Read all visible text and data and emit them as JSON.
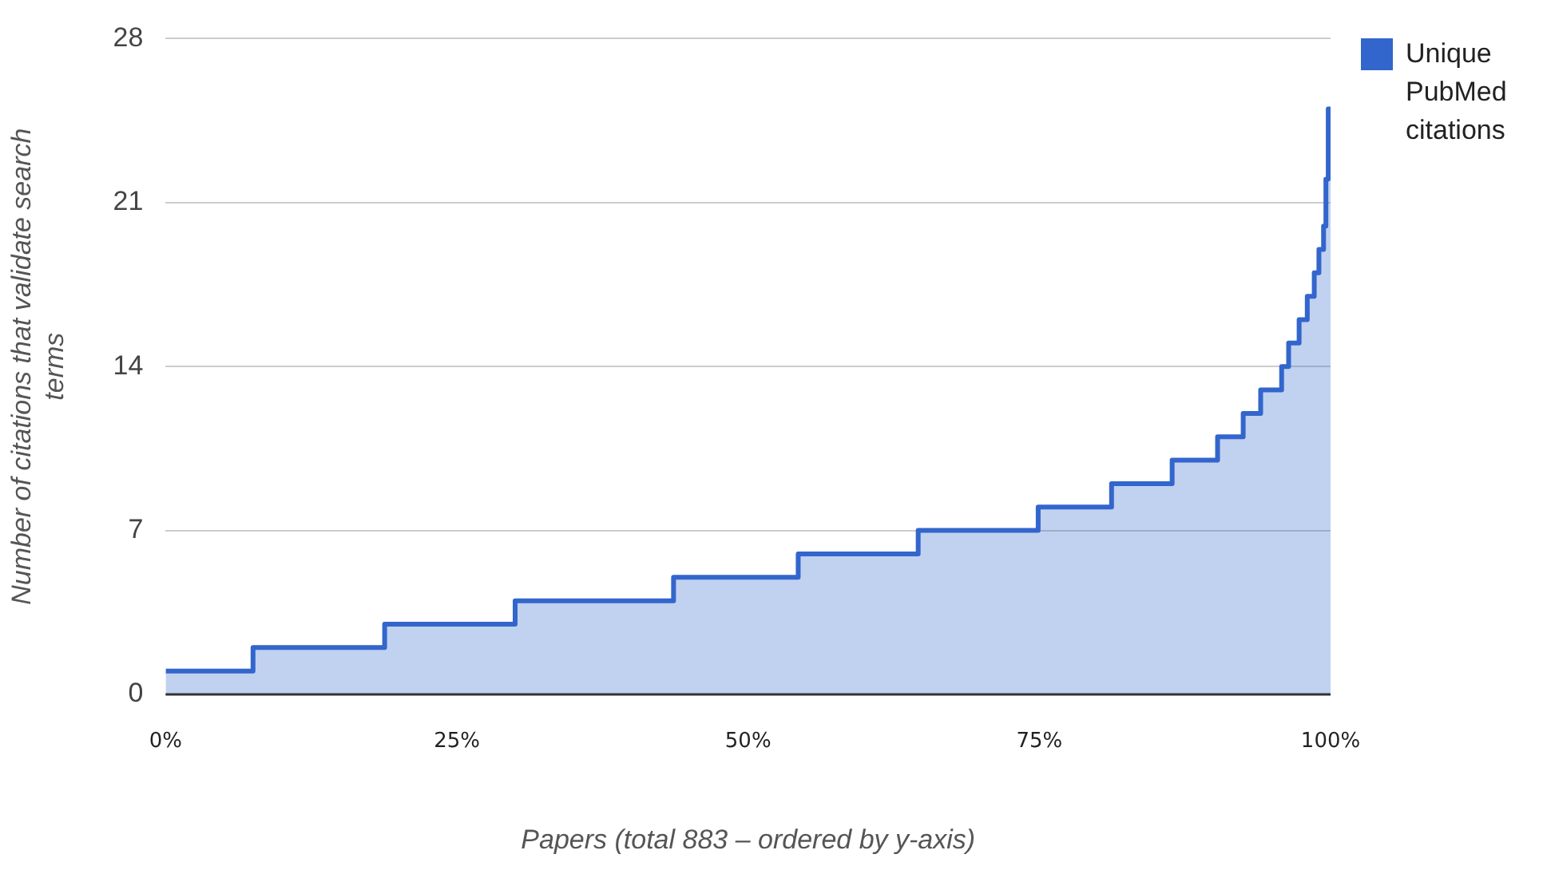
{
  "chart_data": {
    "type": "area",
    "xlabel": "Papers (total 883 – ordered by y-axis)",
    "ylabel": "Number of citations that validate search terms",
    "series": [
      {
        "name": "Unique PubMed citations",
        "color": "#3366cc",
        "x": [
          0,
          7.5,
          7.5,
          18.8,
          18.8,
          30.0,
          30.0,
          43.6,
          43.6,
          54.3,
          54.3,
          64.6,
          64.6,
          74.9,
          74.9,
          81.2,
          81.2,
          86.4,
          86.4,
          90.3,
          90.3,
          92.5,
          92.5,
          94.0,
          94.0,
          95.8,
          95.8,
          96.4,
          96.4,
          97.3,
          97.3,
          98.0,
          98.0,
          98.6,
          98.6,
          99.0,
          99.0,
          99.4,
          99.4,
          99.6,
          99.6,
          99.8,
          99.8,
          100
        ],
        "values": [
          1,
          1,
          2,
          2,
          3,
          3,
          4,
          4,
          5,
          5,
          6,
          6,
          7,
          7,
          8,
          8,
          9,
          9,
          10,
          10,
          11,
          11,
          12,
          12,
          13,
          13,
          14,
          14,
          15,
          15,
          16,
          16,
          17,
          17,
          18,
          18,
          19,
          19,
          20,
          20,
          22,
          22,
          25,
          25
        ]
      }
    ],
    "xlim": [
      0,
      100
    ],
    "xticks": [
      {
        "value": 0,
        "label": "0%"
      },
      {
        "value": 25,
        "label": "25%"
      },
      {
        "value": 50,
        "label": "50%"
      },
      {
        "value": 75,
        "label": "75%"
      },
      {
        "value": 100,
        "label": "100%"
      }
    ],
    "ylim": [
      0,
      28
    ],
    "yticks": [
      0,
      7,
      14,
      21,
      28
    ],
    "grid": "y",
    "legend": "top right"
  }
}
